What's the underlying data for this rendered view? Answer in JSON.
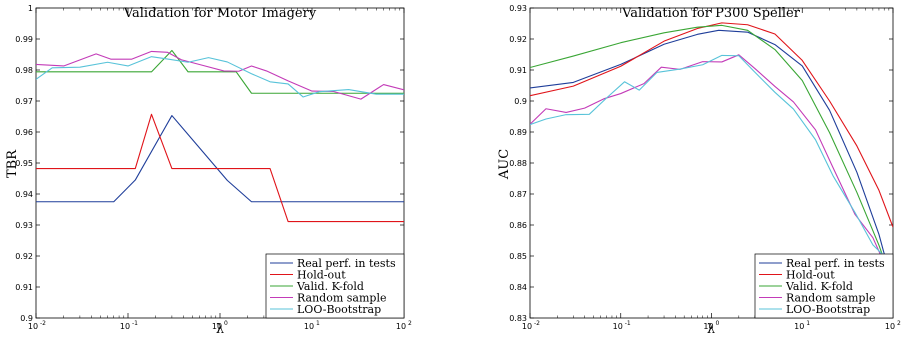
{
  "chart_data": [
    {
      "type": "line",
      "title": "Validation for Motor Imagery",
      "xlabel": "λ",
      "ylabel": "TBR",
      "xscale": "log",
      "xlim": [
        0.01,
        100
      ],
      "ylim": [
        0.9,
        1.0
      ],
      "xticks": [
        {
          "base": "10",
          "exp": "-2",
          "value": 0.01
        },
        {
          "base": "10",
          "exp": "-1",
          "value": 0.1
        },
        {
          "base": "10",
          "exp": "0",
          "value": 1
        },
        {
          "base": "10",
          "exp": "1",
          "value": 10
        },
        {
          "base": "10",
          "exp": "2",
          "value": 100
        }
      ],
      "yticks": [
        "0.9",
        "0.91",
        "0.92",
        "0.93",
        "0.94",
        "0.95",
        "0.96",
        "0.97",
        "0.98",
        "0.99",
        "1"
      ],
      "ytick_values": [
        0.9,
        0.91,
        0.92,
        0.93,
        0.94,
        0.95,
        0.96,
        0.97,
        0.98,
        0.99,
        1.0
      ],
      "grid": false,
      "legend": "bottom-right",
      "series": [
        {
          "name": "Real perf. in tests",
          "color": "#1f3e9a",
          "points": [
            [
              0.01,
              0.9375
            ],
            [
              0.07,
              0.9375
            ],
            [
              0.12,
              0.9445
            ],
            [
              0.3,
              0.9653
            ],
            [
              1.2,
              0.9444
            ],
            [
              2.2,
              0.9375
            ],
            [
              100,
              0.9375
            ]
          ]
        },
        {
          "name": "Hold-out",
          "color": "#e0141a",
          "points": [
            [
              0.01,
              0.9482
            ],
            [
              0.12,
              0.9482
            ],
            [
              0.18,
              0.9657
            ],
            [
              0.3,
              0.9482
            ],
            [
              3.5,
              0.9482
            ],
            [
              5.5,
              0.9311
            ],
            [
              100,
              0.9311
            ]
          ]
        },
        {
          "name": "Valid. K-fold",
          "color": "#3aa635",
          "points": [
            [
              0.01,
              0.9794
            ],
            [
              0.18,
              0.9794
            ],
            [
              0.3,
              0.9863
            ],
            [
              0.45,
              0.9794
            ],
            [
              1.5,
              0.9794
            ],
            [
              2.2,
              0.9725
            ],
            [
              100,
              0.9725
            ]
          ]
        },
        {
          "name": "Random sample",
          "color": "#c33bb8",
          "points": [
            [
              0.01,
              0.9818
            ],
            [
              0.02,
              0.9813
            ],
            [
              0.045,
              0.9852
            ],
            [
              0.065,
              0.9835
            ],
            [
              0.11,
              0.9835
            ],
            [
              0.18,
              0.986
            ],
            [
              0.27,
              0.9857
            ],
            [
              0.38,
              0.9833
            ],
            [
              0.65,
              0.9815
            ],
            [
              1.1,
              0.9797
            ],
            [
              1.6,
              0.9796
            ],
            [
              2.2,
              0.9813
            ],
            [
              3.2,
              0.9797
            ],
            [
              5.5,
              0.9765
            ],
            [
              10,
              0.9732
            ],
            [
              17,
              0.9731
            ],
            [
              34,
              0.9706
            ],
            [
              60,
              0.9753
            ],
            [
              100,
              0.9736
            ]
          ]
        },
        {
          "name": "LOO-Bootstrap",
          "color": "#58c3d9",
          "points": [
            [
              0.01,
              0.977
            ],
            [
              0.015,
              0.9807
            ],
            [
              0.03,
              0.9809
            ],
            [
              0.06,
              0.9825
            ],
            [
              0.1,
              0.9813
            ],
            [
              0.18,
              0.9843
            ],
            [
              0.26,
              0.9836
            ],
            [
              0.45,
              0.9825
            ],
            [
              0.75,
              0.984
            ],
            [
              1.2,
              0.9826
            ],
            [
              2.2,
              0.9788
            ],
            [
              3.5,
              0.9762
            ],
            [
              5.5,
              0.9755
            ],
            [
              8,
              0.9713
            ],
            [
              12,
              0.973
            ],
            [
              25,
              0.9737
            ],
            [
              50,
              0.9722
            ],
            [
              100,
              0.9722
            ]
          ]
        }
      ]
    },
    {
      "type": "line",
      "title": "Validation for P300 Speller",
      "xlabel": "λ",
      "ylabel": "AUC",
      "xscale": "log",
      "xlim": [
        0.01,
        100
      ],
      "ylim": [
        0.83,
        0.93
      ],
      "xticks": [
        {
          "base": "10",
          "exp": "-2",
          "value": 0.01
        },
        {
          "base": "10",
          "exp": "-1",
          "value": 0.1
        },
        {
          "base": "10",
          "exp": "0",
          "value": 1
        },
        {
          "base": "10",
          "exp": "1",
          "value": 10
        },
        {
          "base": "10",
          "exp": "2",
          "value": 100
        }
      ],
      "yticks": [
        "0.83",
        "0.84",
        "0.85",
        "0.86",
        "0.87",
        "0.88",
        "0.89",
        "0.9",
        "0.91",
        "0.92",
        "0.93"
      ],
      "ytick_values": [
        0.83,
        0.84,
        0.85,
        0.86,
        0.87,
        0.88,
        0.89,
        0.9,
        0.91,
        0.92,
        0.93
      ],
      "grid": false,
      "legend": "bottom-right",
      "series": [
        {
          "name": "Real perf. in tests",
          "color": "#1f3e9a",
          "points": [
            [
              0.01,
              0.9042
            ],
            [
              0.03,
              0.906
            ],
            [
              0.1,
              0.9118
            ],
            [
              0.3,
              0.9183
            ],
            [
              0.7,
              0.9215
            ],
            [
              1.2,
              0.9228
            ],
            [
              2.5,
              0.9222
            ],
            [
              5,
              0.9182
            ],
            [
              10,
              0.9113
            ],
            [
              20,
              0.897
            ],
            [
              40,
              0.877
            ],
            [
              70,
              0.857
            ],
            [
              100,
              0.8402
            ]
          ]
        },
        {
          "name": "Hold-out",
          "color": "#e0141a",
          "points": [
            [
              0.01,
              0.9017
            ],
            [
              0.03,
              0.9048
            ],
            [
              0.1,
              0.9112
            ],
            [
              0.3,
              0.9193
            ],
            [
              0.7,
              0.9234
            ],
            [
              1.3,
              0.9252
            ],
            [
              2.5,
              0.9246
            ],
            [
              5,
              0.9216
            ],
            [
              10,
              0.9131
            ],
            [
              20,
              0.9
            ],
            [
              40,
              0.8855
            ],
            [
              70,
              0.8712
            ],
            [
              100,
              0.8593
            ]
          ]
        },
        {
          "name": "Valid. K-fold",
          "color": "#3aa635",
          "points": [
            [
              0.01,
              0.9108
            ],
            [
              0.03,
              0.9145
            ],
            [
              0.1,
              0.9188
            ],
            [
              0.3,
              0.922
            ],
            [
              0.7,
              0.9238
            ],
            [
              1.3,
              0.9244
            ],
            [
              2.5,
              0.9228
            ],
            [
              5,
              0.9166
            ],
            [
              10,
              0.9066
            ],
            [
              20,
              0.8898
            ],
            [
              40,
              0.8705
            ],
            [
              70,
              0.8535
            ],
            [
              100,
              0.8408
            ]
          ]
        },
        {
          "name": "Random sample",
          "color": "#c33bb8",
          "points": [
            [
              0.01,
              0.8925
            ],
            [
              0.015,
              0.8975
            ],
            [
              0.025,
              0.8963
            ],
            [
              0.04,
              0.8977
            ],
            [
              0.065,
              0.9007
            ],
            [
              0.1,
              0.9024
            ],
            [
              0.18,
              0.9056
            ],
            [
              0.28,
              0.9109
            ],
            [
              0.45,
              0.9102
            ],
            [
              0.8,
              0.9127
            ],
            [
              1.3,
              0.9126
            ],
            [
              2,
              0.9149
            ],
            [
              3,
              0.9105
            ],
            [
              5,
              0.9047
            ],
            [
              8,
              0.8997
            ],
            [
              14,
              0.8907
            ],
            [
              22,
              0.8783
            ],
            [
              38,
              0.8635
            ],
            [
              60,
              0.8559
            ],
            [
              100,
              0.8414
            ]
          ]
        },
        {
          "name": "LOO-Bootstrap",
          "color": "#58c3d9",
          "points": [
            [
              0.01,
              0.8924
            ],
            [
              0.015,
              0.8942
            ],
            [
              0.025,
              0.8956
            ],
            [
              0.045,
              0.8957
            ],
            [
              0.07,
              0.901
            ],
            [
              0.11,
              0.9062
            ],
            [
              0.16,
              0.9035
            ],
            [
              0.25,
              0.9092
            ],
            [
              0.45,
              0.9103
            ],
            [
              0.8,
              0.9117
            ],
            [
              1.3,
              0.9147
            ],
            [
              2,
              0.9146
            ],
            [
              3,
              0.9093
            ],
            [
              5,
              0.9028
            ],
            [
              8,
              0.8974
            ],
            [
              14,
              0.8875
            ],
            [
              22,
              0.8757
            ],
            [
              38,
              0.8641
            ],
            [
              60,
              0.8536
            ],
            [
              100,
              0.8472
            ]
          ]
        }
      ]
    }
  ]
}
